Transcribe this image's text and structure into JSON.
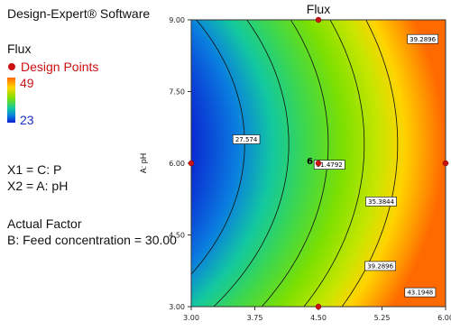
{
  "sidebar": {
    "software": "Design-Expert® Software",
    "response": "Flux",
    "design_points_label": "Design Points",
    "ramp_high": "49",
    "ramp_low": "23",
    "x1": "X1 = C: P",
    "x2": "X2 = A: pH",
    "actual_factor_title": "Actual Factor",
    "actual_factor_value": "B: Feed concentration = 30.00"
  },
  "colors": {
    "design_point": "#cc1111",
    "contour_line": "#111111"
  },
  "chart_data": {
    "type": "contour",
    "title": "Flux",
    "xlabel": "",
    "ylabel": "A: pH",
    "xlim": [
      3.0,
      6.0
    ],
    "ylim": [
      3.0,
      9.0
    ],
    "x_ticks": [
      "3.00",
      "3.75",
      "4.50",
      "5.25",
      "6.00"
    ],
    "y_ticks": [
      "3.00",
      "4.50",
      "6.00",
      "7.50",
      "9.00"
    ],
    "contour_levels": [
      {
        "value": 27.574,
        "label": "27.574"
      },
      {
        "value": 31.4792,
        "label": "31.4792"
      },
      {
        "value": 35.3844,
        "label": "35.3844"
      },
      {
        "value": 39.2896,
        "label": "39.2896"
      },
      {
        "value": 43.1948,
        "label": "43.1948"
      }
    ],
    "color_range": [
      23,
      49
    ],
    "design_points": [
      {
        "x": 4.5,
        "y": 9.0
      },
      {
        "x": 3.0,
        "y": 6.0
      },
      {
        "x": 4.5,
        "y": 6.0,
        "count": "6"
      },
      {
        "x": 6.0,
        "y": 6.0
      },
      {
        "x": 4.5,
        "y": 3.0
      }
    ]
  }
}
